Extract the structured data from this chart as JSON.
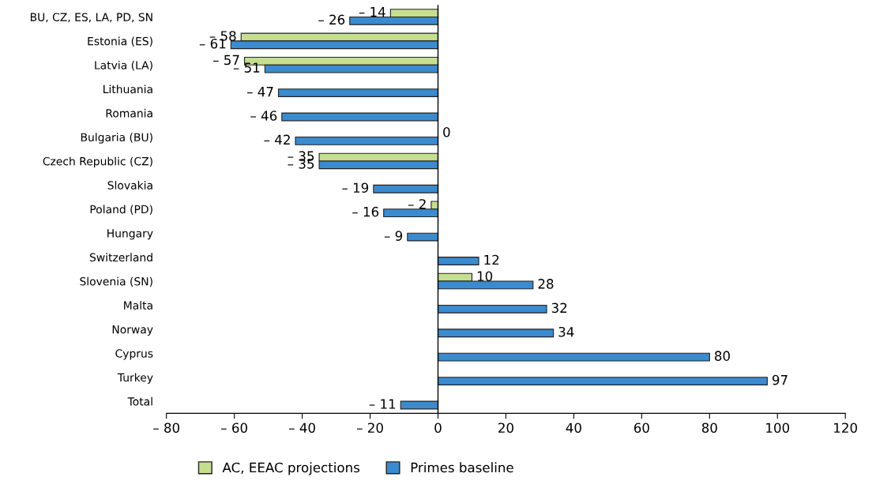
{
  "chart_data": {
    "type": "bar",
    "orientation": "horizontal",
    "categories": [
      "BU, CZ, ES, LA, PD, SN",
      "Estonia (ES)",
      "Latvia (LA)",
      "Lithuania",
      "Romania",
      "Bulgaria (BU)",
      "Czech Republic (CZ)",
      "Slovakia",
      "Poland (PD)",
      "Hungary",
      "Switzerland",
      "Slovenia (SN)",
      "Malta",
      "Norway",
      "Cyprus",
      "Turkey",
      "Total"
    ],
    "series": [
      {
        "name": "AC, EEAC projections",
        "color": "#c5df8f",
        "values": [
          -14,
          -58,
          -57,
          null,
          null,
          0,
          -35,
          null,
          -2,
          null,
          null,
          10,
          null,
          null,
          null,
          null,
          null
        ],
        "value_labels": [
          "– 14",
          "– 58",
          "– 57",
          null,
          null,
          "0",
          "– 35",
          null,
          "– 2",
          null,
          null,
          "10",
          null,
          null,
          null,
          null,
          null
        ]
      },
      {
        "name": "Primes baseline",
        "color": "#3a8bd0",
        "values": [
          -26,
          -61,
          -51,
          -47,
          -46,
          -42,
          -35,
          -19,
          -16,
          -9,
          12,
          28,
          32,
          34,
          80,
          97,
          -11
        ],
        "value_labels": [
          "– 26",
          "– 61",
          "– 51",
          "– 47",
          "– 46",
          "– 42",
          "– 35",
          "– 19",
          "– 16",
          "– 9",
          "12",
          "28",
          "32",
          "34",
          "80",
          "97",
          "– 11"
        ]
      }
    ],
    "xlim": [
      -80,
      120
    ],
    "xticks": [
      {
        "value": -80,
        "label": "– 80"
      },
      {
        "value": -60,
        "label": "– 60"
      },
      {
        "value": -40,
        "label": "– 40"
      },
      {
        "value": -20,
        "label": "– 20"
      },
      0,
      20,
      40,
      60,
      80,
      100,
      120
    ],
    "ref_lines": [
      {
        "axis": "x",
        "value": 0,
        "color": "#000000"
      }
    ],
    "grid": false,
    "legend": "bottom"
  }
}
